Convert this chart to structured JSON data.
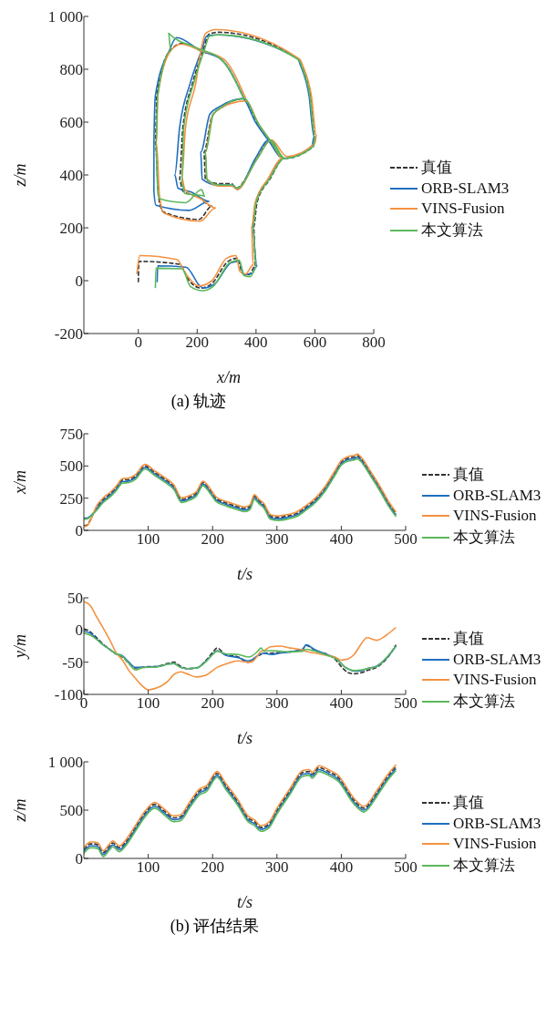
{
  "chart_data": [
    {
      "type": "line",
      "title": "(a) 轨迹",
      "xlabel": "x/m",
      "ylabel": "z/m",
      "xlim": [
        -185,
        800
      ],
      "xticks": [
        0,
        200,
        400,
        600,
        800
      ],
      "ylim": [
        -200,
        1000
      ],
      "yticks": [
        -200,
        0,
        200,
        400,
        600,
        800,
        {
          "value": 1000,
          "label": "1 000"
        }
      ],
      "legend": "right",
      "line_style": "solid",
      "series": [
        {
          "name": "真值",
          "color": "#333333",
          "line_style": "dashed",
          "x": [
            0,
            2,
            140,
            173,
            212,
            250,
            305,
            337,
            354,
            376,
            398,
            392,
            403,
            447,
            497,
            447,
            403,
            359,
            283,
            250,
            223,
            228,
            272,
            316,
            332,
            403,
            447,
            497,
            595,
            601,
            584,
            557,
            546,
            272,
            239,
            223,
            184,
            151,
            140,
            151,
            206,
            250,
            206,
            85,
            69,
            58,
            63,
            107,
            151,
            212,
            283,
            359
          ],
          "values": [
            -6,
            73,
            62,
            0,
            -28,
            -11,
            73,
            85,
            28,
            23,
            56,
            203,
            294,
            384,
            463,
            531,
            600,
            689,
            655,
            622,
            486,
            384,
            367,
            367,
            350,
            463,
            531,
            463,
            508,
            542,
            700,
            808,
            836,
            940,
            932,
            881,
            746,
            576,
            384,
            339,
            316,
            282,
            232,
            260,
            316,
            520,
            700,
            870,
            898,
            870,
            836,
            689
          ]
        },
        {
          "name": "ORB-SLAM3",
          "color": "#1f6fbf",
          "x": [
            64,
            66,
            162,
            212,
            223,
            261,
            316,
            343,
            359,
            387,
            403,
            387,
            398,
            442,
            492,
            442,
            398,
            354,
            278,
            243,
            212,
            217,
            267,
            321,
            337,
            398,
            442,
            497,
            590,
            597,
            580,
            552,
            541,
            267,
            232,
            216,
            176,
            140,
            124,
            135,
            180,
            240,
            173,
            60,
            53,
            53,
            58,
            105,
            130,
            212,
            283,
            359
          ],
          "values": [
            -6,
            56,
            51,
            -23,
            -28,
            -11,
            68,
            73,
            23,
            28,
            56,
            203,
            294,
            384,
            463,
            531,
            600,
            689,
            660,
            630,
            486,
            384,
            362,
            362,
            345,
            463,
            531,
            463,
            510,
            545,
            700,
            812,
            840,
            930,
            925,
            875,
            746,
            576,
            400,
            350,
            335,
            300,
            266,
            285,
            339,
            520,
            700,
            870,
            920,
            870,
            836,
            689
          ]
        },
        {
          "name": "VINS-Fusion",
          "color": "#f39240",
          "x": [
            -5,
            5,
            130,
            165,
            205,
            250,
            300,
            332,
            345,
            365,
            390,
            385,
            397,
            440,
            490,
            455,
            410,
            365,
            283,
            250,
            228,
            233,
            275,
            318,
            335,
            405,
            452,
            505,
            600,
            605,
            588,
            560,
            548,
            262,
            228,
            215,
            195,
            160,
            148,
            158,
            215,
            262,
            210,
            88,
            72,
            62,
            66,
            110,
            145,
            215,
            290,
            365
          ],
          "values": [
            25,
            95,
            80,
            20,
            -20,
            0,
            85,
            95,
            35,
            25,
            60,
            203,
            294,
            384,
            463,
            520,
            590,
            680,
            655,
            620,
            486,
            384,
            358,
            358,
            345,
            465,
            533,
            470,
            520,
            550,
            700,
            810,
            838,
            950,
            935,
            885,
            746,
            576,
            390,
            345,
            308,
            275,
            225,
            255,
            320,
            520,
            700,
            870,
            895,
            870,
            838,
            689
          ]
        },
        {
          "name": "本文算法",
          "color": "#5cb85c",
          "x": [
            58,
            60,
            148,
            178,
            218,
            256,
            311,
            343,
            358,
            381,
            400,
            390,
            400,
            445,
            497,
            448,
            405,
            360,
            287,
            255,
            228,
            233,
            275,
            318,
            334,
            405,
            450,
            497,
            595,
            600,
            583,
            556,
            545,
            277,
            242,
            225,
            188,
            154,
            148,
            158,
            225,
            215,
            160,
            72,
            66,
            60,
            66,
            110,
            103,
            200,
            283,
            359
          ],
          "values": [
            -28,
            47,
            45,
            -23,
            -38,
            -20,
            68,
            77,
            20,
            15,
            50,
            203,
            294,
            384,
            463,
            531,
            600,
            689,
            660,
            630,
            486,
            384,
            362,
            362,
            350,
            463,
            531,
            463,
            508,
            542,
            700,
            808,
            836,
            930,
            925,
            875,
            746,
            576,
            370,
            330,
            320,
            345,
            295,
            310,
            339,
            520,
            700,
            870,
            936,
            880,
            836,
            689
          ]
        }
      ]
    },
    {
      "type": "line",
      "xlabel": "t/s",
      "ylabel": "x/m",
      "xlim": [
        0,
        500
      ],
      "xticks": [
        100,
        200,
        300,
        400,
        500
      ],
      "ylim": [
        0,
        750
      ],
      "yticks": [
        0,
        250,
        500,
        750
      ],
      "legend": "right",
      "line_style": "solid",
      "x": [
        0,
        5,
        10,
        20,
        30,
        40,
        50,
        60,
        70,
        80,
        95,
        110,
        125,
        140,
        152,
        165,
        175,
        185,
        195,
        205,
        220,
        235,
        250,
        258,
        265,
        272,
        280,
        290,
        300,
        315,
        330,
        345,
        360,
        375,
        390,
        400,
        410,
        420,
        425,
        430,
        445,
        460,
        475,
        485
      ],
      "series": [
        {
          "name": "真值",
          "color": "#333333",
          "line_style": "dashed",
          "values": [
            35,
            40,
            80,
            180,
            240,
            280,
            330,
            390,
            395,
            420,
            500,
            450,
            400,
            340,
            240,
            260,
            290,
            370,
            320,
            250,
            215,
            190,
            170,
            185,
            265,
            230,
            195,
            110,
            100,
            110,
            130,
            180,
            240,
            330,
            450,
            530,
            560,
            570,
            580,
            560,
            450,
            330,
            200,
            130
          ]
        },
        {
          "name": "ORB-SLAM3",
          "color": "#1f6fbf",
          "values": [
            95,
            95,
            110,
            168,
            228,
            268,
            318,
            378,
            383,
            408,
            488,
            438,
            388,
            328,
            228,
            248,
            278,
            358,
            308,
            238,
            203,
            178,
            158,
            173,
            253,
            218,
            183,
            98,
            88,
            98,
            118,
            168,
            228,
            318,
            438,
            518,
            548,
            558,
            568,
            548,
            438,
            318,
            188,
            118
          ]
        },
        {
          "name": "VINS-Fusion",
          "color": "#f39240",
          "values": [
            30,
            35,
            75,
            192,
            252,
            292,
            342,
            402,
            407,
            432,
            512,
            462,
            412,
            352,
            252,
            272,
            302,
            382,
            332,
            262,
            227,
            202,
            182,
            197,
            277,
            242,
            207,
            122,
            112,
            122,
            142,
            192,
            252,
            342,
            462,
            542,
            572,
            582,
            592,
            572,
            462,
            342,
            212,
            142
          ]
        },
        {
          "name": "本文算法",
          "color": "#5cb85c",
          "values": [
            85,
            88,
            105,
            156,
            216,
            256,
            306,
            366,
            371,
            396,
            476,
            426,
            376,
            316,
            216,
            236,
            266,
            346,
            296,
            226,
            191,
            166,
            146,
            161,
            241,
            206,
            171,
            86,
            76,
            86,
            106,
            156,
            216,
            306,
            426,
            506,
            536,
            546,
            556,
            536,
            426,
            306,
            176,
            106
          ]
        }
      ]
    },
    {
      "type": "line",
      "xlabel": "t/s",
      "ylabel": "y/m",
      "xlim": [
        0,
        500
      ],
      "xticks": [
        0,
        100,
        200,
        300,
        400,
        500
      ],
      "ylim": [
        -100,
        50
      ],
      "yticks": [
        -100,
        -50,
        0,
        50
      ],
      "legend": "right",
      "line_style": "solid",
      "x": [
        0,
        10,
        20,
        30,
        40,
        50,
        60,
        70,
        80,
        90,
        100,
        110,
        120,
        130,
        140,
        150,
        160,
        175,
        190,
        200,
        207,
        220,
        240,
        255,
        260,
        270,
        275,
        280,
        290,
        305,
        320,
        340,
        345,
        360,
        380,
        390,
        400,
        405,
        410,
        420,
        432,
        440,
        455,
        470,
        485
      ],
      "series": [
        {
          "name": "真值",
          "color": "#333333",
          "line_style": "dashed",
          "values": [
            2,
            -3,
            -12,
            -22,
            -30,
            -37,
            -42,
            -52,
            -59,
            -58,
            -57,
            -57,
            -55,
            -52,
            -50,
            -56,
            -60,
            -59,
            -47,
            -35,
            -28,
            -38,
            -42,
            -50,
            -48,
            -40,
            -38,
            -36,
            -36,
            -35,
            -34,
            -30,
            -24,
            -32,
            -39,
            -45,
            -57,
            -62,
            -66,
            -68,
            -66,
            -63,
            -58,
            -45,
            -23
          ]
        },
        {
          "name": "ORB-SLAM3",
          "color": "#1f6fbf",
          "values": [
            -2,
            -5,
            -14,
            -23,
            -30,
            -37,
            -40,
            -50,
            -58,
            -58,
            -58,
            -57,
            -56,
            -53,
            -52,
            -58,
            -60,
            -59,
            -48,
            -38,
            -32,
            -39,
            -43,
            -48,
            -47,
            -40,
            -37,
            -36,
            -38,
            -36,
            -34,
            -30,
            -23,
            -31,
            -39,
            -43,
            -52,
            -57,
            -60,
            -64,
            -63,
            -60,
            -56,
            -44,
            -25
          ]
        },
        {
          "name": "VINS-Fusion",
          "color": "#f39240",
          "values": [
            44,
            38,
            20,
            3,
            -15,
            -35,
            -47,
            -63,
            -75,
            -86,
            -93,
            -91,
            -87,
            -80,
            -69,
            -65,
            -68,
            -73,
            -70,
            -63,
            -58,
            -53,
            -48,
            -50,
            -50,
            -40,
            -33,
            -32,
            -26,
            -25,
            -28,
            -31,
            -33,
            -36,
            -40,
            -42,
            -47,
            -46,
            -45,
            -38,
            -20,
            -12,
            -16,
            -8,
            4
          ]
        },
        {
          "name": "本文算法",
          "color": "#5cb85c",
          "values": [
            -5,
            -8,
            -15,
            -23,
            -30,
            -37,
            -41,
            -52,
            -62,
            -59,
            -58,
            -58,
            -56,
            -53,
            -52,
            -58,
            -60,
            -59,
            -49,
            -38,
            -33,
            -37,
            -38,
            -42,
            -41,
            -33,
            -28,
            -33,
            -32,
            -33,
            -34,
            -33,
            -30,
            -33,
            -40,
            -44,
            -52,
            -57,
            -60,
            -63,
            -62,
            -60,
            -57,
            -43,
            -25
          ]
        }
      ]
    },
    {
      "type": "line",
      "xlabel": "t/s",
      "ylabel": "z/m",
      "annotations": [
        "(b) 评估结果"
      ],
      "xlim": [
        0,
        500
      ],
      "xticks": [
        100,
        200,
        300,
        400,
        500
      ],
      "ylim": [
        0,
        1000
      ],
      "yticks": [
        0,
        500,
        {
          "value": 1000,
          "label": "1 000"
        }
      ],
      "legend": "right",
      "line_style": "solid",
      "x": [
        0,
        5,
        10,
        15,
        22,
        30,
        40,
        45,
        55,
        65,
        80,
        95,
        110,
        125,
        140,
        150,
        165,
        180,
        190,
        207,
        220,
        240,
        255,
        265,
        275,
        288,
        300,
        320,
        340,
        350,
        355,
        365,
        380,
        395,
        420,
        435,
        455,
        470,
        485
      ],
      "series": [
        {
          "name": "真值",
          "color": "#333333",
          "line_style": "dashed",
          "values": [
            90,
            130,
            150,
            150,
            140,
            60,
            130,
            160,
            110,
            170,
            320,
            470,
            560,
            490,
            420,
            430,
            570,
            700,
            730,
            880,
            760,
            580,
            420,
            380,
            320,
            360,
            500,
            700,
            890,
            900,
            870,
            940,
            900,
            840,
            600,
            520,
            680,
            830,
            950
          ]
        },
        {
          "name": "ORB-SLAM3",
          "color": "#1f6fbf",
          "values": [
            70,
            110,
            130,
            130,
            120,
            40,
            110,
            140,
            90,
            150,
            300,
            450,
            540,
            470,
            400,
            410,
            550,
            680,
            710,
            860,
            740,
            560,
            400,
            360,
            300,
            340,
            480,
            680,
            870,
            880,
            850,
            920,
            880,
            820,
            580,
            500,
            660,
            810,
            930
          ]
        },
        {
          "name": "VINS-Fusion",
          "color": "#f39240",
          "values": [
            110,
            150,
            170,
            170,
            160,
            80,
            150,
            180,
            130,
            190,
            340,
            490,
            580,
            510,
            440,
            450,
            590,
            720,
            750,
            900,
            780,
            600,
            440,
            400,
            340,
            380,
            520,
            720,
            910,
            920,
            890,
            960,
            920,
            860,
            620,
            540,
            700,
            850,
            970
          ]
        },
        {
          "name": "本文算法",
          "color": "#5cb85c",
          "values": [
            50,
            90,
            110,
            110,
            100,
            20,
            90,
            120,
            70,
            130,
            280,
            430,
            520,
            450,
            380,
            390,
            530,
            660,
            690,
            840,
            720,
            540,
            380,
            340,
            280,
            320,
            460,
            660,
            850,
            860,
            830,
            900,
            860,
            800,
            560,
            480,
            640,
            790,
            910
          ]
        }
      ]
    }
  ]
}
